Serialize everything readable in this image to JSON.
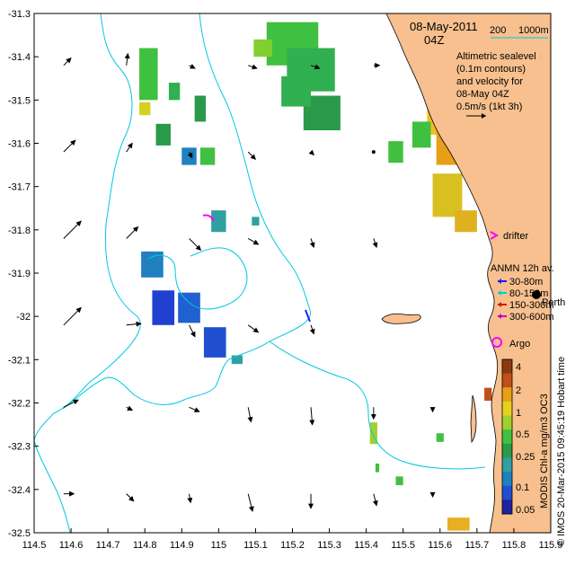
{
  "title": {
    "date": "08-May-2011",
    "hour": "04Z"
  },
  "depth_legend": {
    "label_200": "200",
    "label_1000": "1000m"
  },
  "notes": {
    "line1": "Altimetric sealevel",
    "line2": "(0.1m contours)",
    "line3": "and velocity for",
    "line4": "08-May 04Z",
    "line5": "0.5m/s (1kt 3h)"
  },
  "drifter_label": "drifter",
  "anmn": {
    "title": "ANMN 12h av.",
    "items": [
      {
        "label": "30-80m",
        "color": "#1a1aff"
      },
      {
        "label": "80-150m",
        "color": "#00d0d0"
      },
      {
        "label": "150-300m",
        "color": "#e01010"
      },
      {
        "label": "300-600m",
        "color": "#c000c0"
      }
    ],
    "perth_label": "Perth",
    "argo_label": "Argo"
  },
  "colorbar": {
    "ticks": [
      "4",
      "2",
      "1",
      "0.5",
      "0.25",
      "0.1",
      "0.05"
    ],
    "label": "MODIS Chl-a mg/m3 OC3"
  },
  "credit": "© IMOS 20-Mar-2015 09:45:19 Hobart time",
  "x_ticks": [
    "114.5",
    "114.6",
    "114.7",
    "114.8",
    "114.9",
    "115",
    "115.1",
    "115.2",
    "115.3",
    "115.4",
    "115.5",
    "115.6",
    "115.7",
    "115.8",
    "115.9"
  ],
  "y_ticks": [
    "-31.3",
    "-31.4",
    "-31.5",
    "-31.6",
    "-31.7",
    "-31.8",
    "-31.9",
    "-32",
    "-32.1",
    "-32.2",
    "-32.3",
    "-32.4",
    "-32.5"
  ],
  "colors": {
    "land": "#f7c08e",
    "contour": "#00c8e0",
    "drifter": "#ff00ff",
    "argo": "#ff00ff"
  },
  "map_data": {
    "lon_range": [
      114.5,
      115.9
    ],
    "lat_range": [
      -32.5,
      -31.3
    ],
    "velocity_arrows": [
      {
        "lon": 114.58,
        "lat": -31.42,
        "u": 0.05,
        "v": 0.05
      },
      {
        "lon": 114.58,
        "lat": -31.62,
        "u": 0.08,
        "v": 0.08
      },
      {
        "lon": 114.58,
        "lat": -31.82,
        "u": 0.12,
        "v": 0.12
      },
      {
        "lon": 114.58,
        "lat": -32.02,
        "u": 0.12,
        "v": 0.12
      },
      {
        "lon": 114.58,
        "lat": -32.21,
        "u": 0.1,
        "v": 0.05
      },
      {
        "lon": 114.58,
        "lat": -32.41,
        "u": 0.07,
        "v": 0.0
      },
      {
        "lon": 114.75,
        "lat": -31.42,
        "u": 0.01,
        "v": 0.08
      },
      {
        "lon": 114.75,
        "lat": -31.62,
        "u": 0.04,
        "v": 0.06
      },
      {
        "lon": 114.75,
        "lat": -31.82,
        "u": 0.08,
        "v": 0.08
      },
      {
        "lon": 114.75,
        "lat": -32.02,
        "u": 0.1,
        "v": 0.01
      },
      {
        "lon": 114.75,
        "lat": -32.21,
        "u": 0.04,
        "v": -0.02
      },
      {
        "lon": 114.75,
        "lat": -32.41,
        "u": 0.05,
        "v": -0.05
      },
      {
        "lon": 114.92,
        "lat": -31.42,
        "u": 0.04,
        "v": -0.02
      },
      {
        "lon": 114.92,
        "lat": -31.62,
        "u": 0.02,
        "v": -0.04
      },
      {
        "lon": 114.92,
        "lat": -31.82,
        "u": 0.08,
        "v": -0.08
      },
      {
        "lon": 114.92,
        "lat": -32.02,
        "u": 0.04,
        "v": -0.08
      },
      {
        "lon": 114.92,
        "lat": -32.21,
        "u": 0.07,
        "v": -0.03
      },
      {
        "lon": 114.92,
        "lat": -32.41,
        "u": 0.01,
        "v": -0.06
      },
      {
        "lon": 115.08,
        "lat": -31.42,
        "u": 0.06,
        "v": -0.02
      },
      {
        "lon": 115.08,
        "lat": -31.62,
        "u": 0.05,
        "v": -0.05
      },
      {
        "lon": 115.08,
        "lat": -31.82,
        "u": 0.07,
        "v": -0.04
      },
      {
        "lon": 115.08,
        "lat": -32.02,
        "u": 0.07,
        "v": -0.05
      },
      {
        "lon": 115.08,
        "lat": -32.21,
        "u": 0.02,
        "v": -0.1
      },
      {
        "lon": 115.08,
        "lat": -32.41,
        "u": 0.03,
        "v": -0.12
      },
      {
        "lon": 115.25,
        "lat": -31.42,
        "u": 0.06,
        "v": -0.02
      },
      {
        "lon": 115.25,
        "lat": -31.62,
        "u": 0.02,
        "v": -0.02
      },
      {
        "lon": 115.25,
        "lat": -31.82,
        "u": 0.02,
        "v": -0.06
      },
      {
        "lon": 115.25,
        "lat": -32.02,
        "u": 0.02,
        "v": -0.06
      },
      {
        "lon": 115.25,
        "lat": -32.21,
        "u": 0.01,
        "v": -0.12
      },
      {
        "lon": 115.25,
        "lat": -32.41,
        "u": 0.0,
        "v": -0.1
      },
      {
        "lon": 115.42,
        "lat": -31.42,
        "u": 0.04,
        "v": 0.0
      },
      {
        "lon": 115.42,
        "lat": -31.62,
        "u": 0.0,
        "v": 0.0
      },
      {
        "lon": 115.42,
        "lat": -31.82,
        "u": 0.02,
        "v": -0.06
      },
      {
        "lon": 115.42,
        "lat": -32.21,
        "u": 0.0,
        "v": -0.08
      },
      {
        "lon": 115.42,
        "lat": -32.41,
        "u": 0.02,
        "v": -0.08
      },
      {
        "lon": 115.58,
        "lat": -32.21,
        "u": 0.0,
        "v": -0.03
      },
      {
        "lon": 115.58,
        "lat": -32.41,
        "u": 0.0,
        "v": -0.02
      }
    ],
    "chl_patches": [
      {
        "lon": 114.81,
        "lat": -31.44,
        "w": 0.05,
        "h": 0.12,
        "c": "#40c040"
      },
      {
        "lon": 114.8,
        "lat": -31.52,
        "w": 0.03,
        "h": 0.03,
        "c": "#d8d020"
      },
      {
        "lon": 114.85,
        "lat": -31.58,
        "w": 0.04,
        "h": 0.05,
        "c": "#2a9a4a"
      },
      {
        "lon": 114.88,
        "lat": -31.48,
        "w": 0.03,
        "h": 0.04,
        "c": "#30b050"
      },
      {
        "lon": 114.95,
        "lat": -31.52,
        "w": 0.03,
        "h": 0.06,
        "c": "#2a9a4a"
      },
      {
        "lon": 114.92,
        "lat": -31.63,
        "w": 0.04,
        "h": 0.04,
        "c": "#2080c0"
      },
      {
        "lon": 114.97,
        "lat": -31.63,
        "w": 0.04,
        "h": 0.04,
        "c": "#40c040"
      },
      {
        "lon": 115.0,
        "lat": -31.78,
        "w": 0.04,
        "h": 0.05,
        "c": "#30a0a0"
      },
      {
        "lon": 115.1,
        "lat": -31.78,
        "w": 0.02,
        "h": 0.02,
        "c": "#30a0a0"
      },
      {
        "lon": 114.82,
        "lat": -31.88,
        "w": 0.06,
        "h": 0.06,
        "c": "#2080c0"
      },
      {
        "lon": 114.85,
        "lat": -31.98,
        "w": 0.06,
        "h": 0.08,
        "c": "#2040d0"
      },
      {
        "lon": 114.92,
        "lat": -31.98,
        "w": 0.06,
        "h": 0.07,
        "c": "#2060d0"
      },
      {
        "lon": 114.99,
        "lat": -32.06,
        "w": 0.06,
        "h": 0.07,
        "c": "#2050d0"
      },
      {
        "lon": 115.05,
        "lat": -32.1,
        "w": 0.03,
        "h": 0.02,
        "c": "#30a0a0"
      },
      {
        "lon": 115.2,
        "lat": -31.37,
        "w": 0.14,
        "h": 0.1,
        "c": "#40c040"
      },
      {
        "lon": 115.25,
        "lat": -31.43,
        "w": 0.13,
        "h": 0.1,
        "c": "#30b050"
      },
      {
        "lon": 115.28,
        "lat": -31.53,
        "w": 0.1,
        "h": 0.08,
        "c": "#2a9a4a"
      },
      {
        "lon": 115.21,
        "lat": -31.48,
        "w": 0.08,
        "h": 0.07,
        "c": "#30b050"
      },
      {
        "lon": 115.12,
        "lat": -31.38,
        "w": 0.05,
        "h": 0.04,
        "c": "#80d030"
      },
      {
        "lon": 115.48,
        "lat": -31.62,
        "w": 0.04,
        "h": 0.05,
        "c": "#40c040"
      },
      {
        "lon": 115.6,
        "lat": -31.52,
        "w": 0.07,
        "h": 0.12,
        "c": "#f0c020"
      },
      {
        "lon": 115.63,
        "lat": -31.6,
        "w": 0.08,
        "h": 0.1,
        "c": "#e8a018"
      },
      {
        "lon": 115.62,
        "lat": -31.72,
        "w": 0.08,
        "h": 0.1,
        "c": "#d8c020"
      },
      {
        "lon": 115.67,
        "lat": -31.78,
        "w": 0.06,
        "h": 0.05,
        "c": "#e0b020"
      },
      {
        "lon": 115.55,
        "lat": -31.58,
        "w": 0.05,
        "h": 0.06,
        "c": "#40c040"
      },
      {
        "lon": 115.73,
        "lat": -32.18,
        "w": 0.02,
        "h": 0.03,
        "c": "#c05018"
      },
      {
        "lon": 115.42,
        "lat": -32.27,
        "w": 0.02,
        "h": 0.05,
        "c": "#a0d030"
      },
      {
        "lon": 115.43,
        "lat": -32.35,
        "w": 0.01,
        "h": 0.02,
        "c": "#40c040"
      },
      {
        "lon": 115.65,
        "lat": -32.48,
        "w": 0.06,
        "h": 0.03,
        "c": "#e8b020"
      },
      {
        "lon": 115.6,
        "lat": -32.28,
        "w": 0.02,
        "h": 0.02,
        "c": "#40c040"
      },
      {
        "lon": 115.49,
        "lat": -32.38,
        "w": 0.02,
        "h": 0.02,
        "c": "#40c040"
      }
    ]
  }
}
